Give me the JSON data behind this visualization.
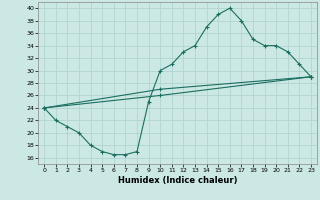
{
  "xlabel": "Humidex (Indice chaleur)",
  "bg_color": "#cce8e4",
  "grid_color": "#b0d4d0",
  "line_color": "#1a6e60",
  "xlim": [
    -0.5,
    23.5
  ],
  "ylim": [
    15,
    41
  ],
  "yticks": [
    16,
    18,
    20,
    22,
    24,
    26,
    28,
    30,
    32,
    34,
    36,
    38,
    40
  ],
  "xticks": [
    0,
    1,
    2,
    3,
    4,
    5,
    6,
    7,
    8,
    9,
    10,
    11,
    12,
    13,
    14,
    15,
    16,
    17,
    18,
    19,
    20,
    21,
    22,
    23
  ],
  "line1_x": [
    0,
    1,
    2,
    3,
    4,
    5,
    6,
    7,
    8,
    9,
    10,
    11,
    12,
    13,
    14,
    15,
    16,
    17,
    18,
    19,
    20,
    21,
    22,
    23
  ],
  "line1_y": [
    24,
    22,
    21,
    20,
    18,
    17,
    16.5,
    16.5,
    17,
    25,
    30,
    31,
    33,
    34,
    37,
    39,
    40,
    38,
    35,
    34,
    34,
    33,
    31,
    29
  ],
  "line2_x": [
    0,
    10,
    23
  ],
  "line2_y": [
    24,
    27,
    29
  ],
  "line3_x": [
    0,
    10,
    23
  ],
  "line3_y": [
    24,
    26,
    29
  ]
}
